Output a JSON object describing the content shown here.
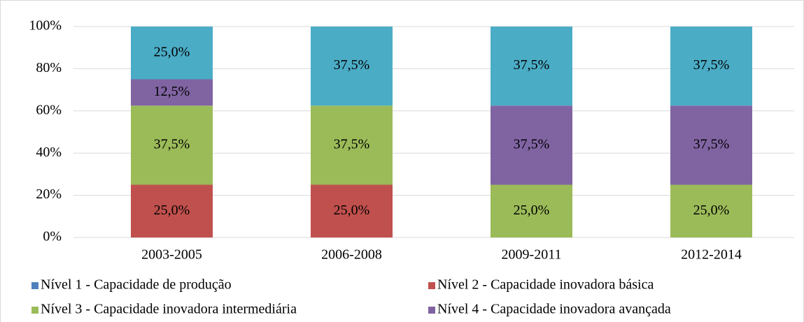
{
  "chart_data": {
    "type": "stacked_bar",
    "categories": [
      "2003-2005",
      "2006-2008",
      "2009-2011",
      "2012-2014"
    ],
    "series": [
      {
        "name": "Nível 1 - Capacidade de produção",
        "color": "#4f81bd",
        "values": [
          0,
          0,
          0,
          0
        ],
        "value_labels": [
          null,
          null,
          null,
          null
        ]
      },
      {
        "name": "Nível 2 - Capacidade inovadora básica",
        "color": "#c0504d",
        "values": [
          25,
          25,
          0,
          0
        ],
        "value_labels": [
          "25,0%",
          "25,0%",
          null,
          null
        ]
      },
      {
        "name": "Nível 3 - Capacidade inovadora intermediária",
        "color": "#9bbb59",
        "values": [
          37.5,
          37.5,
          25,
          25
        ],
        "value_labels": [
          "37,5%",
          "37,5%",
          "25,0%",
          "25,0%"
        ]
      },
      {
        "name": "Nível 4 - Capacidade inovadora avançada",
        "color": "#8064a2",
        "values": [
          12.5,
          0,
          37.5,
          37.5
        ],
        "value_labels": [
          "12,5%",
          null,
          "37,5%",
          "37,5%"
        ]
      },
      {
        "name": null,
        "color": "#4bacc6",
        "values": [
          25,
          37.5,
          37.5,
          37.5
        ],
        "value_labels": [
          "25,0%",
          "37,5%",
          "37,5%",
          "37,5%"
        ]
      }
    ],
    "ylim": [
      0,
      100
    ],
    "yticks": [
      {
        "value": 0,
        "label": "0%"
      },
      {
        "value": 20,
        "label": "20%"
      },
      {
        "value": 40,
        "label": "40%"
      },
      {
        "value": 60,
        "label": "60%"
      },
      {
        "value": 80,
        "label": "80%"
      },
      {
        "value": 100,
        "label": "100%"
      }
    ],
    "grid": true
  }
}
